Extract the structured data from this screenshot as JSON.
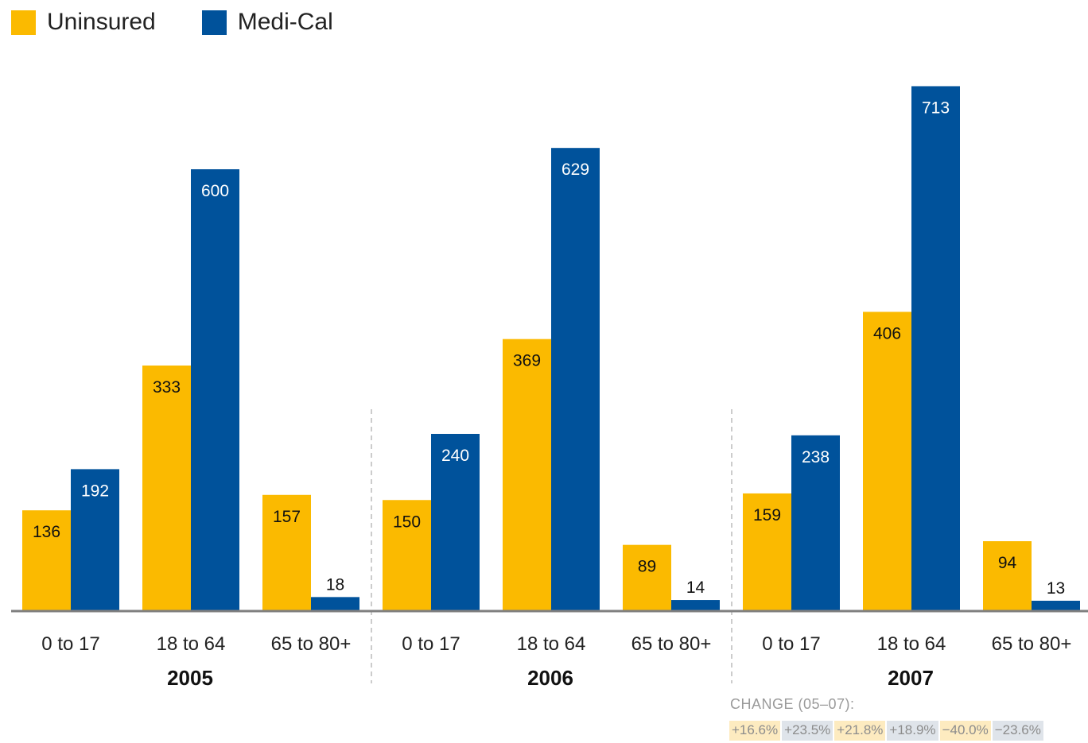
{
  "legend": {
    "uninsured_label": "Uninsured",
    "medical_label": "Medi-Cal"
  },
  "colors": {
    "uninsured": "#FBBA00",
    "medical": "#00529B",
    "axis": "#7f7f7f",
    "divider": "#9a9a9a"
  },
  "chart_data": {
    "type": "bar",
    "groups": [
      {
        "year": "2005",
        "categories": [
          "0 to 17",
          "18 to 64",
          "65 to 80+"
        ],
        "uninsured": [
          136,
          333,
          157
        ],
        "medical": [
          192,
          600,
          18
        ]
      },
      {
        "year": "2006",
        "categories": [
          "0 to 17",
          "18 to 64",
          "65 to 80+"
        ],
        "uninsured": [
          150,
          369,
          89
        ],
        "medical": [
          240,
          629,
          14
        ]
      },
      {
        "year": "2007",
        "categories": [
          "0 to 17",
          "18 to 64",
          "65 to 80+"
        ],
        "uninsured": [
          159,
          406,
          94
        ],
        "medical": [
          238,
          713,
          13
        ]
      }
    ],
    "series": [
      {
        "name": "Uninsured",
        "key": "uninsured"
      },
      {
        "name": "Medi-Cal",
        "key": "medical"
      }
    ],
    "ylim": [
      0,
      713
    ],
    "grid": false,
    "legend_placement": "top-left"
  },
  "change": {
    "title": "CHANGE (05–07):",
    "values": [
      "+16.6%",
      "+23.5%",
      "+21.8%",
      "+18.9%",
      "−40.0%",
      "−23.6%"
    ]
  }
}
